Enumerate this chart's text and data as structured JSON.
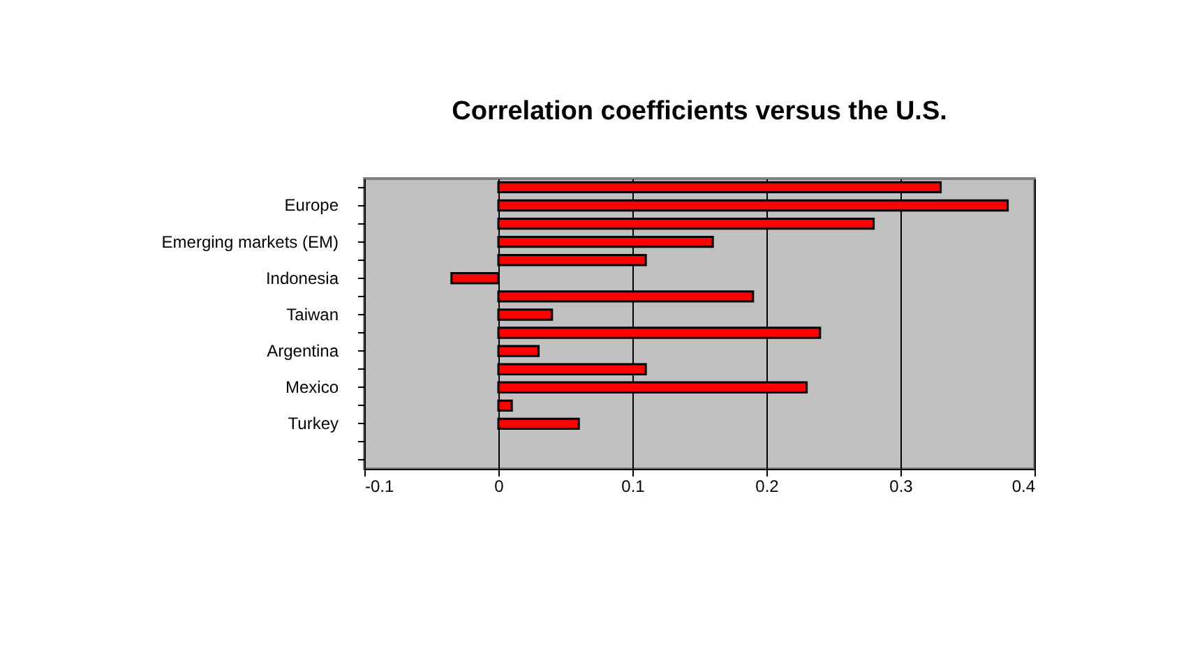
{
  "chart_data": {
    "type": "bar",
    "orientation": "horizontal",
    "title": "Correlation coefficients versus the U.S.",
    "categories": [
      null,
      "Europe",
      null,
      "Emerging markets (EM)",
      null,
      "Indonesia",
      null,
      "Taiwan",
      null,
      "Argentina",
      null,
      "Mexico",
      null,
      "Turkey",
      null,
      null
    ],
    "values": [
      0.33,
      0.38,
      0.28,
      0.16,
      0.11,
      -0.035,
      0.19,
      0.04,
      0.24,
      0.03,
      0.11,
      0.23,
      0.01,
      0.06,
      null,
      null
    ],
    "color": "#ff0000",
    "xlim": [
      -0.1,
      0.4
    ],
    "xticks": [
      -0.1,
      0,
      0.1,
      0.2,
      0.3,
      0.4
    ],
    "grid": "x"
  }
}
